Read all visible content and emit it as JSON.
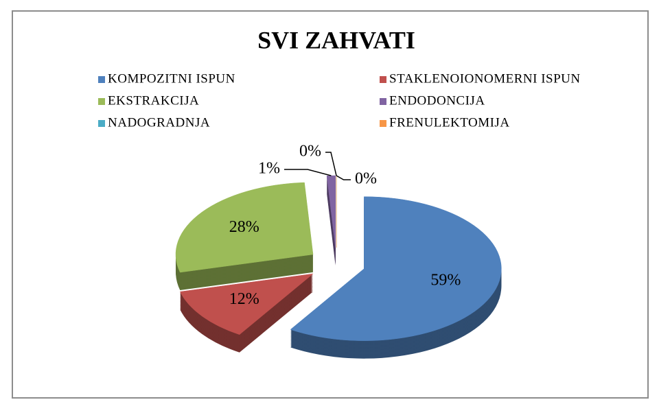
{
  "chart_data": {
    "type": "pie",
    "title": "SVI ZAHVATI",
    "categories": [
      "KOMPOZITNI ISPUN",
      "STAKLENOIONOMERNI ISPUN",
      "EKSTRAKCIJA",
      "ENDODONCIJA",
      "NADOGRADNJA",
      "FRENULEKTOMIJA"
    ],
    "values": [
      59,
      12,
      28,
      1,
      0,
      0
    ],
    "value_labels": [
      "59%",
      "12%",
      "28%",
      "1%",
      "0%",
      "0%"
    ],
    "colors": [
      "#4f81bd",
      "#c0504d",
      "#9bbb59",
      "#8064a2",
      "#4bacc6",
      "#f79646"
    ],
    "legend": "top"
  }
}
